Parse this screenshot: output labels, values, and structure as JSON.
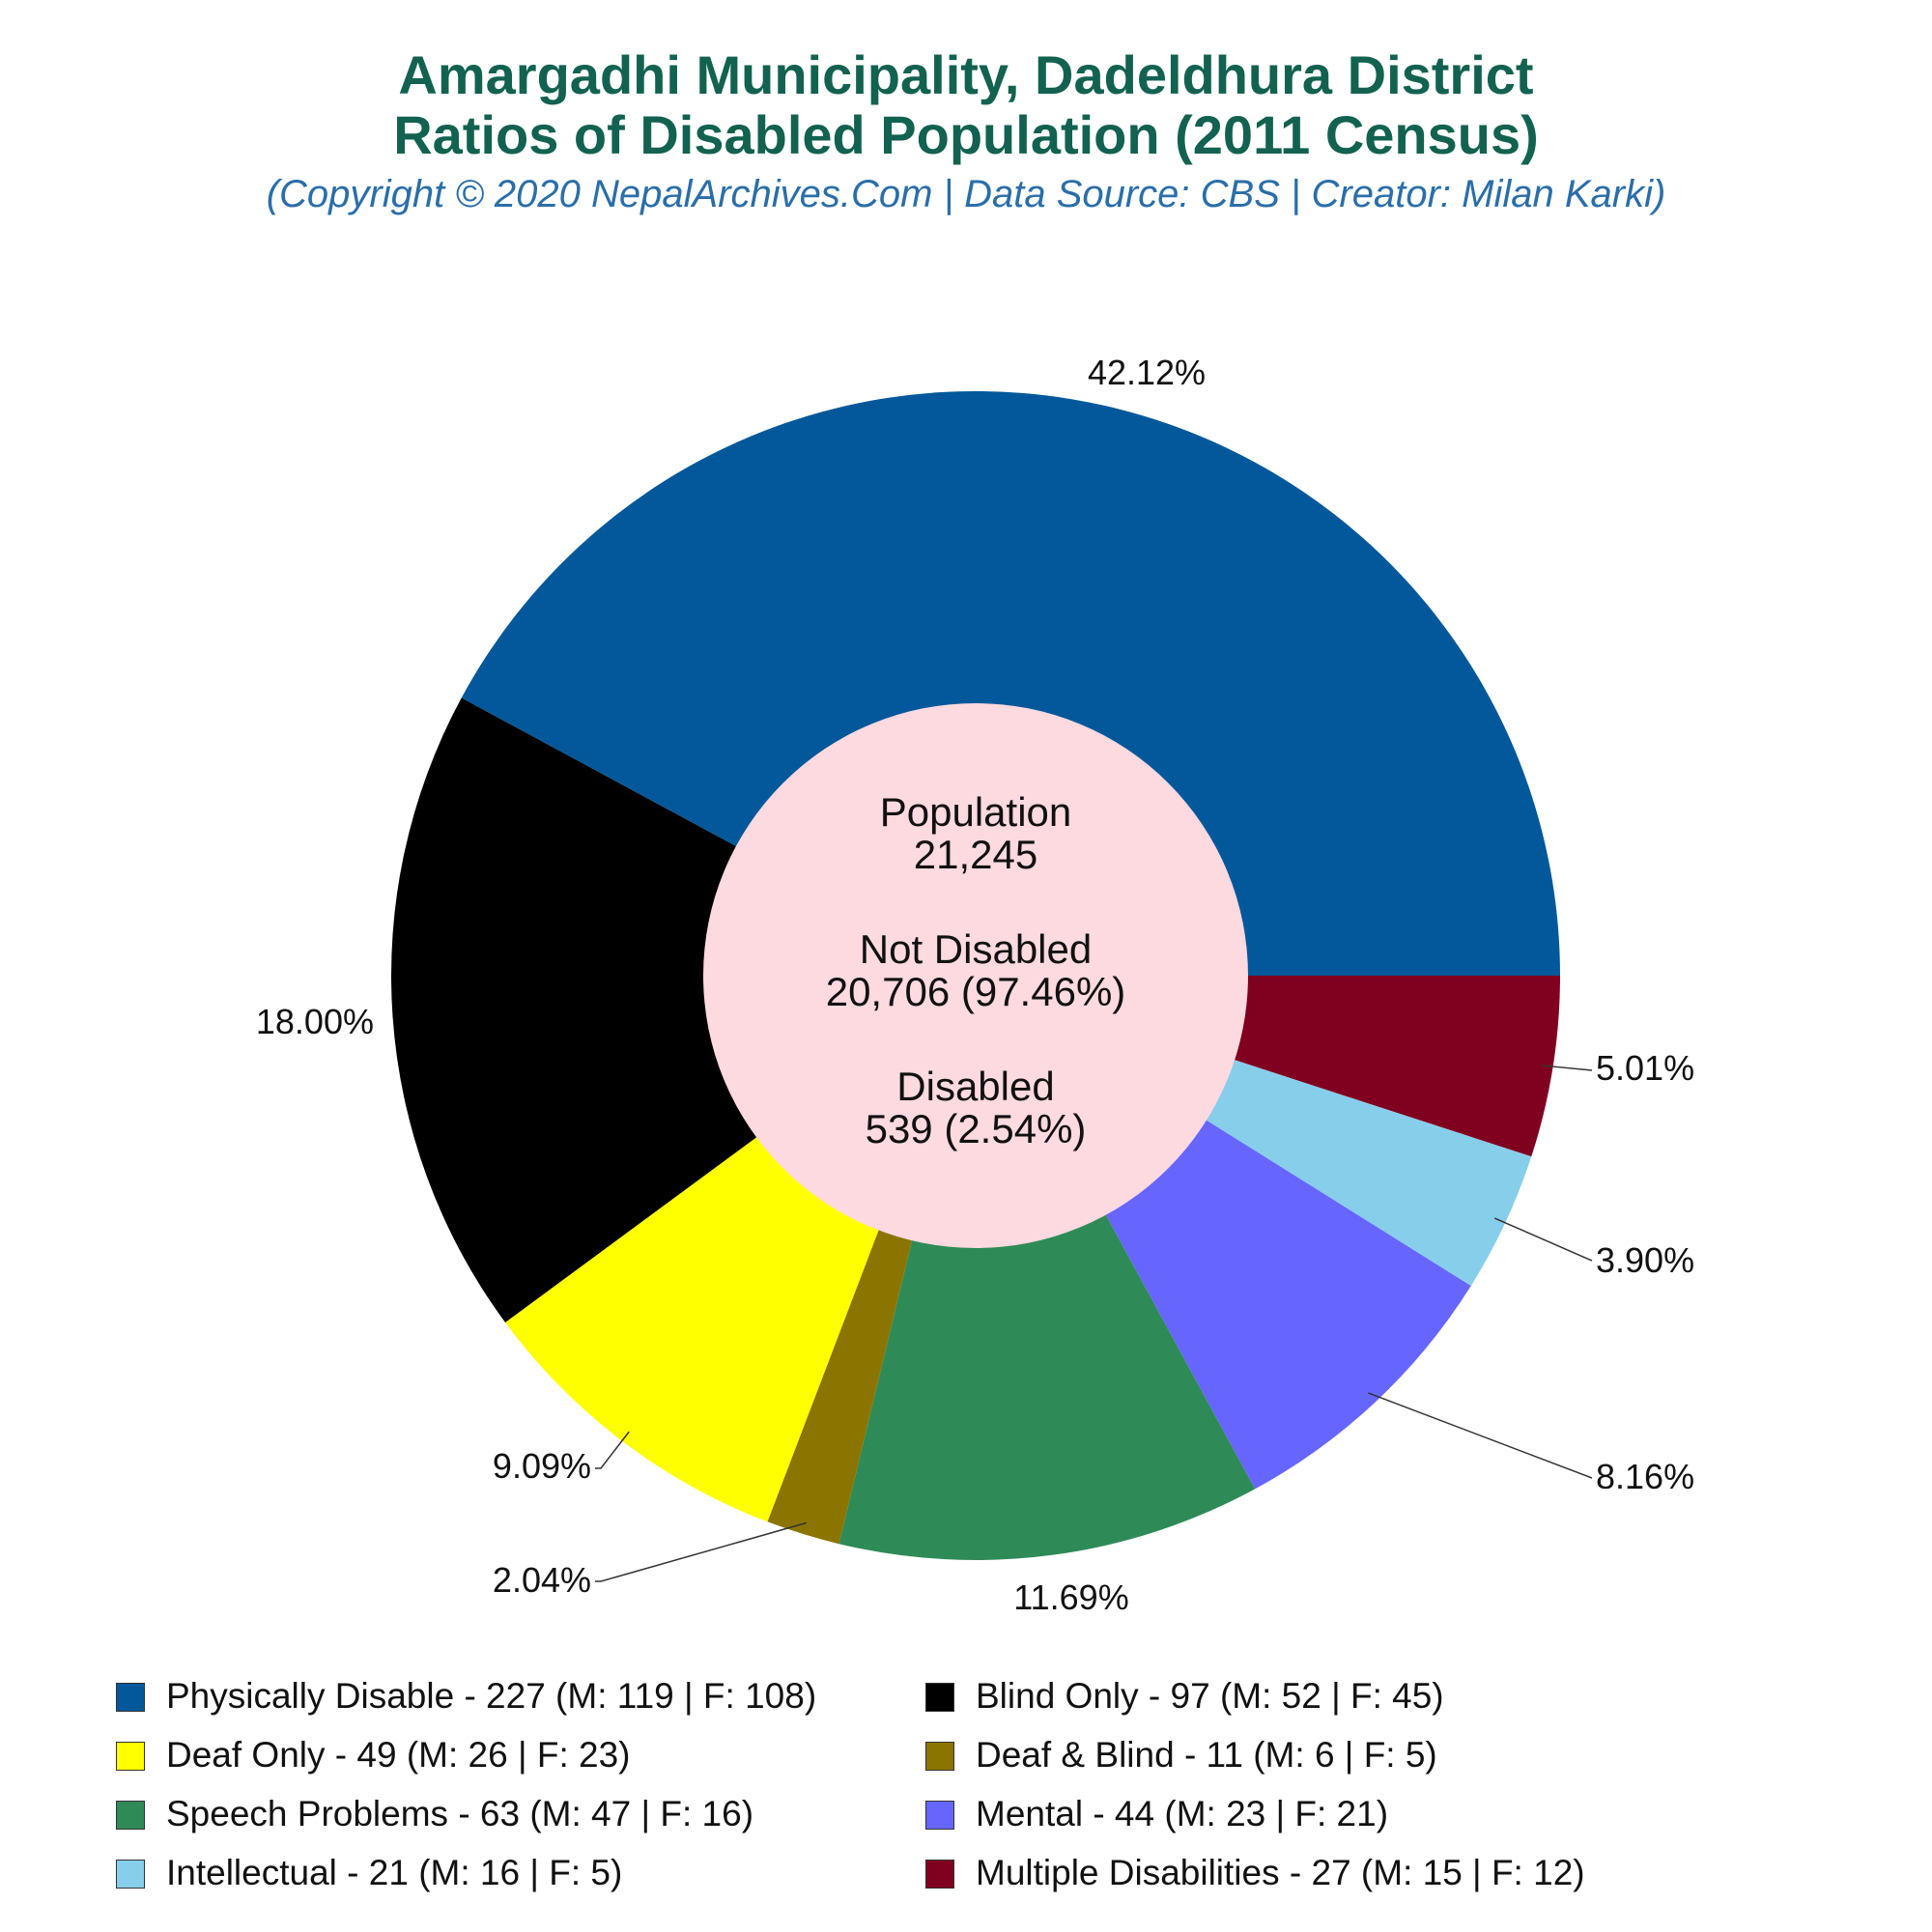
{
  "header": {
    "title_line1": "Amargadhi Municipality, Dadeldhura District",
    "title_line2": "Ratios of Disabled Population (2011 Census)",
    "subtitle": "(Copyright © 2020 NepalArchives.Com | Data Source: CBS | Creator: Milan Karki)"
  },
  "center": {
    "population_label": "Population",
    "population_value": "21,245",
    "not_disabled_label": "Not Disabled",
    "not_disabled_value": "20,706 (97.46%)",
    "disabled_label": "Disabled",
    "disabled_value": "539 (2.54%)"
  },
  "chart_data": {
    "type": "pie",
    "style": "donut",
    "start": "3 o'clock, clockwise from bottom",
    "slices": [
      {
        "label": "Multiple Disabilities",
        "value": 27,
        "male": 15,
        "female": 12,
        "percent_label": "5.01%",
        "color": "#800020",
        "legend": "Multiple Disabilities - 27 (M: 15 | F: 12)"
      },
      {
        "label": "Intellectual",
        "value": 21,
        "male": 16,
        "female": 5,
        "percent_label": "3.90%",
        "color": "#87ceeb",
        "legend": "Intellectual - 21 (M: 16 | F: 5)"
      },
      {
        "label": "Mental",
        "value": 44,
        "male": 23,
        "female": 21,
        "percent_label": "8.16%",
        "color": "#6666ff",
        "legend": "Mental - 44 (M: 23 | F: 21)"
      },
      {
        "label": "Speech Problems",
        "value": 63,
        "male": 47,
        "female": 16,
        "percent_label": "11.69%",
        "color": "#2e8b57",
        "legend": "Speech Problems - 63 (M: 47 | F: 16)"
      },
      {
        "label": "Deaf & Blind",
        "value": 11,
        "male": 6,
        "female": 5,
        "percent_label": "2.04%",
        "color": "#8b7500",
        "legend": "Deaf & Blind - 11 (M: 6 | F: 5)"
      },
      {
        "label": "Deaf Only",
        "value": 49,
        "male": 26,
        "female": 23,
        "percent_label": "9.09%",
        "color": "#ffff00",
        "legend": "Deaf Only - 49 (M: 26 | F: 23)"
      },
      {
        "label": "Blind Only",
        "value": 97,
        "male": 52,
        "female": 45,
        "percent_label": "18.00%",
        "color": "#000000",
        "legend": "Blind Only - 97 (M: 52 | F: 45)"
      },
      {
        "label": "Physically Disable",
        "value": 227,
        "male": 119,
        "female": 108,
        "percent_label": "42.12%",
        "color": "#02589a",
        "legend": "Physically Disable - 227 (M: 119 | F: 108)"
      }
    ],
    "center_color": "#fdd9e0",
    "legend_order": [
      "Physically Disable",
      "Blind Only",
      "Deaf Only",
      "Deaf & Blind",
      "Speech Problems",
      "Mental",
      "Intellectual",
      "Multiple Disabilities"
    ]
  }
}
